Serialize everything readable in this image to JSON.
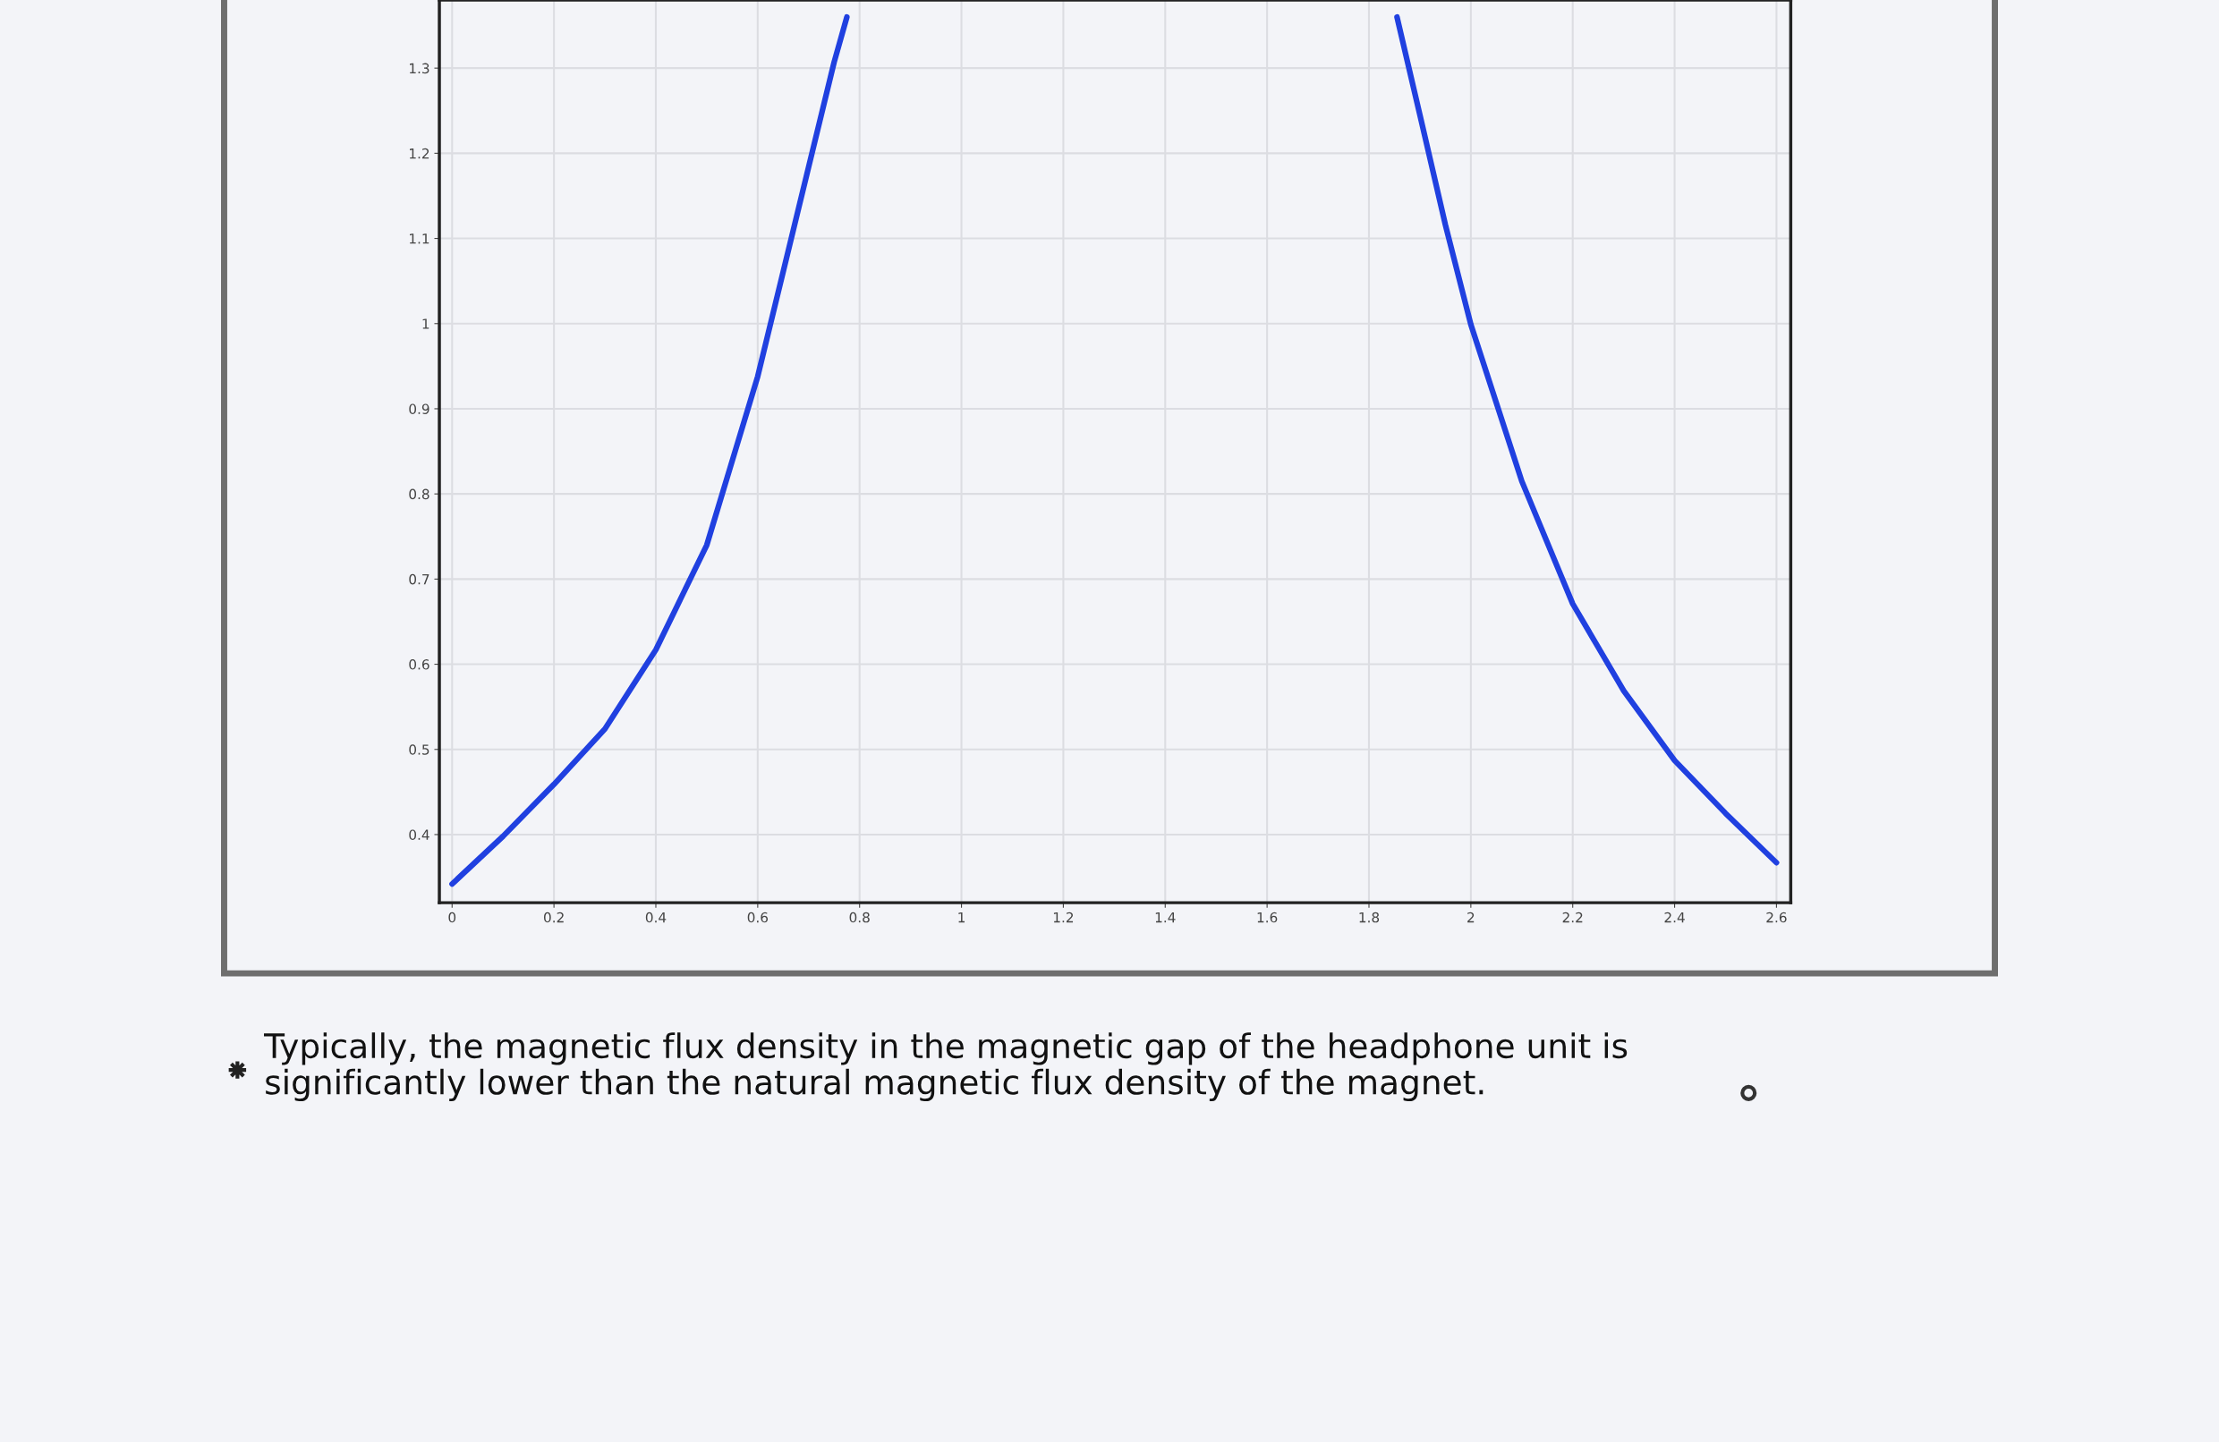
{
  "chart_data": {
    "type": "line",
    "x": [
      0,
      0.1,
      0.2,
      0.3,
      0.4,
      0.5,
      0.6,
      0.65,
      0.7,
      0.75,
      0.775,
      1.3,
      1.855,
      1.9,
      1.95,
      2,
      2.1,
      2.2,
      2.3,
      2.4,
      2.5,
      2.6
    ],
    "series": [
      {
        "color": "#2040e0",
        "values": [
          0.342,
          0.398,
          0.459,
          0.524,
          0.617,
          0.74,
          0.938,
          1.061,
          1.184,
          1.307,
          1.36,
          null,
          1.36,
          1.245,
          1.116,
          0.999,
          0.815,
          0.671,
          0.569,
          0.487,
          0.425,
          0.367
        ]
      }
    ],
    "xlim": [
      -0.025,
      2.628
    ],
    "ylim": [
      0.32,
      1.38
    ],
    "xticks": [
      0,
      0.2,
      0.4,
      0.6,
      0.8,
      1,
      1.2,
      1.4,
      1.6,
      1.8,
      2,
      2.2,
      2.4,
      2.6
    ],
    "yticks": [
      0.4,
      0.5,
      0.6,
      0.7,
      0.8,
      0.9,
      1,
      1.1,
      1.2,
      1.3
    ],
    "grid": true,
    "line_style": "solid",
    "annotations": [
      "Typically, the magnetic flux density in the magnetic gap of the headphone unit is\nsignificantly lower than the natural magnetic flux density of the magnet."
    ]
  }
}
